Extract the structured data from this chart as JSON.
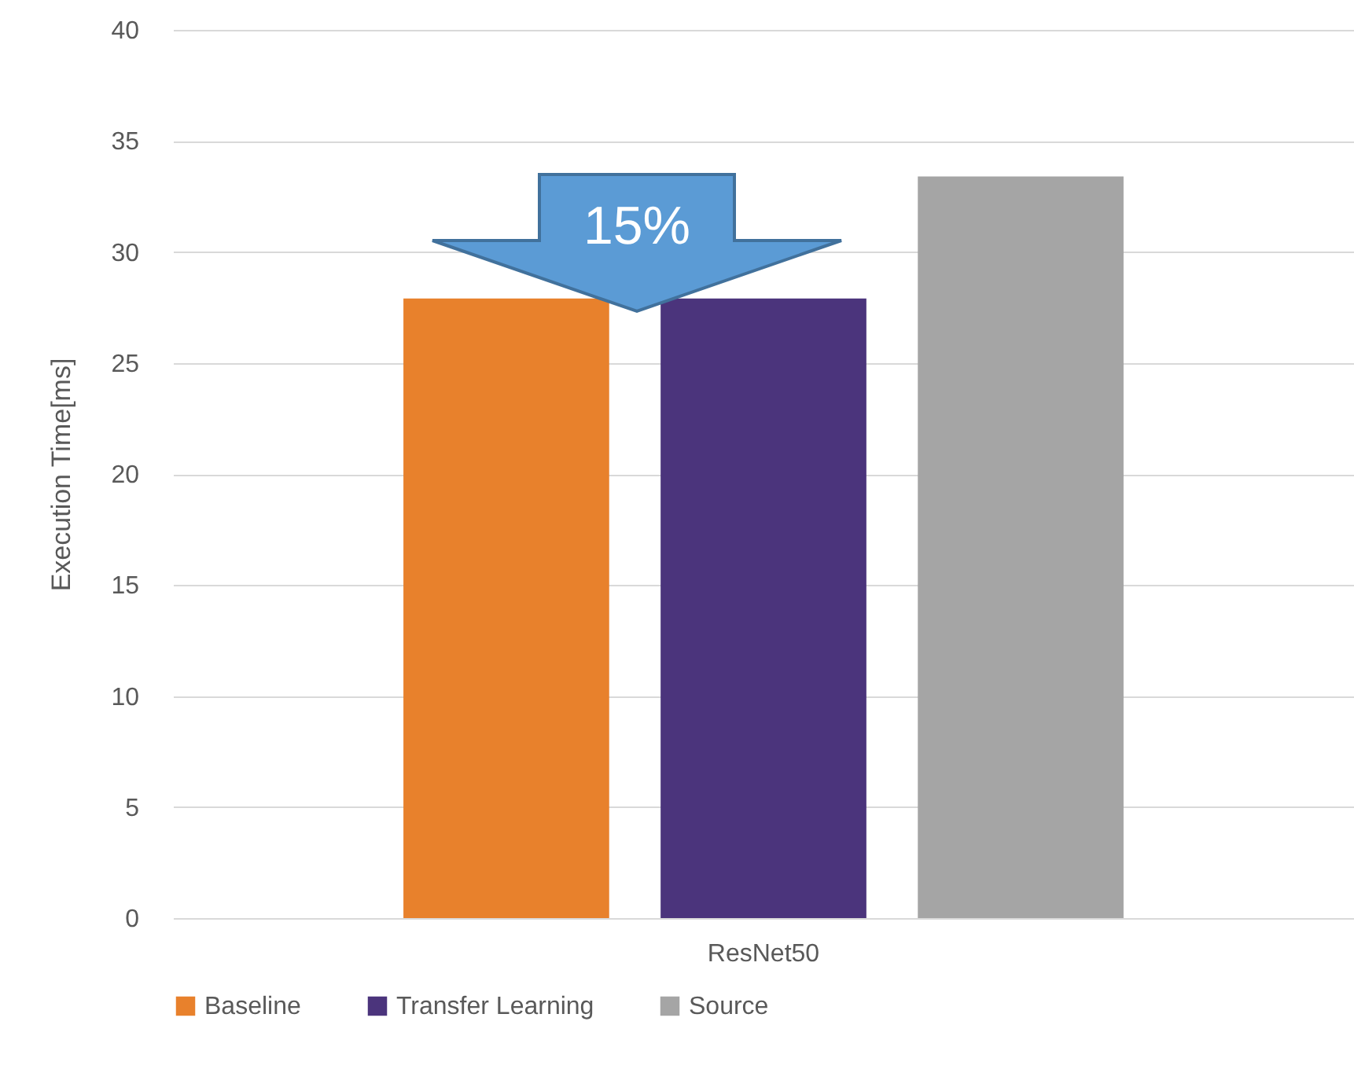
{
  "chart_data": {
    "type": "bar",
    "ylabel": "Execution Time[ms]",
    "categories": [
      "ResNet50"
    ],
    "series": [
      {
        "name": "Baseline",
        "color": "#e8812c",
        "values": [
          27.9
        ]
      },
      {
        "name": "Transfer Learning",
        "color": "#4b347c",
        "values": [
          27.9
        ]
      },
      {
        "name": "Source",
        "color": "#a5a5a5",
        "values": [
          33.4
        ]
      }
    ],
    "ylim": [
      0,
      40
    ],
    "yticks": [
      0,
      5,
      10,
      15,
      20,
      25,
      30,
      35,
      40
    ],
    "grid": "y",
    "legend": "bottom",
    "annotations": [
      "15%"
    ]
  }
}
